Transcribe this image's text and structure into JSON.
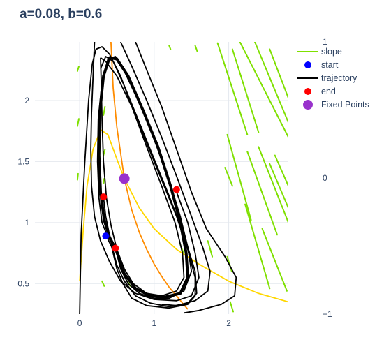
{
  "chart_data": {
    "type": "line",
    "title": "a=0.08, b=0.6",
    "xlim": [
      -0.6,
      2.8
    ],
    "ylim": [
      0.25,
      2.48
    ],
    "x_ticks": [
      0,
      1,
      2
    ],
    "y_ticks": [
      0.5,
      1,
      1.5,
      2
    ],
    "y2_ticks": [
      {
        "label": "1",
        "frac": 1.0
      },
      {
        "label": "0",
        "frac": 0.5
      },
      {
        "label": "−1",
        "frac": 0.0
      }
    ],
    "grid": true,
    "legend_position": "top-right",
    "legend": [
      {
        "name": "slope",
        "kind": "line",
        "color": "#7fe000"
      },
      {
        "name": "start",
        "kind": "marker",
        "color": "#0000ff"
      },
      {
        "name": "trajectory",
        "kind": "line",
        "color": "#000000"
      },
      {
        "name": "end",
        "kind": "marker",
        "color": "#ff0000"
      },
      {
        "name": "Fixed Points",
        "kind": "marker",
        "color": "#9932cc"
      }
    ],
    "colors": {
      "slope": "#7fe000",
      "trajectory": "#000000",
      "start": "#0000ff",
      "end": "#ff0000",
      "fixed": "#9932cc",
      "nullcline_x": "#ffd700",
      "nullcline_y": "#ff8c00"
    },
    "nullcline_x": [
      [
        0.0,
        0.52
      ],
      [
        0.05,
        0.95
      ],
      [
        0.1,
        1.3
      ],
      [
        0.18,
        1.6
      ],
      [
        0.28,
        1.76
      ],
      [
        0.38,
        1.72
      ],
      [
        0.5,
        1.52
      ],
      [
        0.6,
        1.36
      ],
      [
        0.8,
        1.12
      ],
      [
        1.0,
        0.95
      ],
      [
        1.3,
        0.78
      ],
      [
        1.6,
        0.66
      ],
      [
        2.0,
        0.52
      ],
      [
        2.4,
        0.42
      ],
      [
        2.8,
        0.35
      ]
    ],
    "nullcline_y": [
      [
        0.42,
        2.48
      ],
      [
        0.45,
        2.1
      ],
      [
        0.5,
        1.78
      ],
      [
        0.6,
        1.36
      ],
      [
        0.7,
        1.1
      ],
      [
        0.8,
        0.92
      ],
      [
        0.9,
        0.78
      ],
      [
        1.0,
        0.66
      ],
      [
        1.1,
        0.56
      ],
      [
        1.2,
        0.47
      ],
      [
        1.3,
        0.4
      ],
      [
        1.38,
        0.34
      ],
      [
        1.45,
        0.29
      ]
    ],
    "trajectories": [
      [
        [
          0.0,
          0.25
        ],
        [
          0.02,
          0.9
        ],
        [
          0.07,
          1.5
        ],
        [
          0.12,
          2.0
        ],
        [
          0.17,
          2.3
        ],
        [
          0.22,
          2.42
        ],
        [
          0.3,
          2.44
        ],
        [
          0.4,
          2.38
        ],
        [
          0.55,
          2.2
        ],
        [
          0.7,
          1.95
        ],
        [
          0.9,
          1.65
        ],
        [
          1.1,
          1.35
        ],
        [
          1.3,
          1.05
        ],
        [
          1.45,
          0.78
        ],
        [
          1.55,
          0.55
        ],
        [
          1.55,
          0.4
        ],
        [
          1.45,
          0.33
        ],
        [
          1.2,
          0.3
        ],
        [
          0.9,
          0.32
        ],
        [
          0.7,
          0.38
        ],
        [
          0.58,
          0.5
        ],
        [
          0.5,
          0.62
        ],
        [
          0.43,
          0.8
        ],
        [
          0.35,
          0.9
        ]
      ],
      [
        [
          0.28,
          2.26
        ],
        [
          0.35,
          2.36
        ],
        [
          0.45,
          2.32
        ],
        [
          0.6,
          2.12
        ],
        [
          0.8,
          1.82
        ],
        [
          1.0,
          1.52
        ],
        [
          1.2,
          1.22
        ],
        [
          1.4,
          0.9
        ],
        [
          1.55,
          0.6
        ],
        [
          1.57,
          0.42
        ],
        [
          1.45,
          0.34
        ],
        [
          1.2,
          0.31
        ],
        [
          0.95,
          0.34
        ],
        [
          0.75,
          0.4
        ],
        [
          0.6,
          0.52
        ],
        [
          0.5,
          0.65
        ],
        [
          0.42,
          0.84
        ],
        [
          0.35,
          1.05
        ],
        [
          0.32,
          1.21
        ]
      ],
      [
        [
          0.48,
          0.79
        ],
        [
          0.55,
          0.62
        ],
        [
          0.65,
          0.5
        ],
        [
          0.8,
          0.42
        ],
        [
          1.0,
          0.38
        ],
        [
          1.2,
          0.38
        ],
        [
          1.4,
          0.44
        ],
        [
          1.5,
          0.6
        ],
        [
          1.45,
          0.8
        ],
        [
          1.35,
          1.05
        ],
        [
          1.2,
          1.35
        ],
        [
          1.0,
          1.68
        ],
        [
          0.8,
          1.98
        ],
        [
          0.6,
          2.24
        ],
        [
          0.48,
          2.36
        ],
        [
          0.38,
          2.34
        ],
        [
          0.3,
          2.15
        ],
        [
          0.25,
          1.85
        ],
        [
          0.24,
          1.5
        ],
        [
          0.26,
          1.2
        ],
        [
          0.3,
          1.0
        ],
        [
          0.38,
          0.88
        ],
        [
          0.48,
          0.79
        ]
      ],
      [
        [
          0.28,
          2.35
        ],
        [
          0.35,
          2.32
        ],
        [
          0.5,
          2.2
        ],
        [
          0.7,
          1.95
        ],
        [
          0.9,
          1.62
        ],
        [
          1.1,
          1.3
        ],
        [
          1.28,
          1.0
        ],
        [
          1.38,
          0.75
        ],
        [
          1.4,
          0.55
        ],
        [
          1.3,
          0.44
        ],
        [
          1.1,
          0.4
        ],
        [
          0.9,
          0.42
        ],
        [
          0.72,
          0.5
        ],
        [
          0.6,
          0.62
        ],
        [
          0.5,
          0.78
        ],
        [
          0.42,
          0.98
        ],
        [
          0.36,
          1.2
        ],
        [
          0.32,
          1.5
        ],
        [
          0.3,
          1.85
        ],
        [
          0.29,
          2.15
        ],
        [
          0.28,
          2.35
        ]
      ],
      [
        [
          0.75,
          2.48
        ],
        [
          0.9,
          2.25
        ],
        [
          1.1,
          1.95
        ],
        [
          1.3,
          1.6
        ],
        [
          1.5,
          1.25
        ],
        [
          1.7,
          0.95
        ],
        [
          1.95,
          0.72
        ],
        [
          2.1,
          0.55
        ],
        [
          2.08,
          0.4
        ],
        [
          1.9,
          0.33
        ],
        [
          1.6,
          0.28
        ],
        [
          1.4,
          0.26
        ]
      ],
      [
        [
          0.55,
          2.48
        ],
        [
          0.7,
          2.28
        ],
        [
          0.9,
          2.0
        ],
        [
          1.1,
          1.7
        ],
        [
          1.3,
          1.38
        ],
        [
          1.5,
          1.05
        ],
        [
          1.65,
          0.8
        ],
        [
          1.75,
          0.6
        ],
        [
          1.72,
          0.44
        ],
        [
          1.55,
          0.36
        ],
        [
          1.3,
          0.32
        ],
        [
          1.1,
          0.33
        ]
      ],
      [
        [
          0.2,
          2.48
        ],
        [
          0.18,
          2.2
        ],
        [
          0.16,
          1.9
        ],
        [
          0.15,
          1.6
        ],
        [
          0.16,
          1.3
        ],
        [
          0.2,
          1.05
        ],
        [
          0.28,
          0.85
        ],
        [
          0.4,
          0.68
        ],
        [
          0.55,
          0.52
        ],
        [
          0.75,
          0.42
        ],
        [
          1.0,
          0.37
        ],
        [
          1.3,
          0.36
        ],
        [
          1.5,
          0.4
        ],
        [
          1.6,
          0.55
        ],
        [
          1.55,
          0.75
        ],
        [
          1.45,
          1.0
        ],
        [
          1.3,
          1.25
        ]
      ]
    ],
    "thick_trajectory": [
      [
        0.48,
        0.79
      ],
      [
        0.6,
        0.58
      ],
      [
        0.75,
        0.46
      ],
      [
        0.95,
        0.4
      ],
      [
        1.15,
        0.39
      ],
      [
        1.35,
        0.42
      ],
      [
        1.45,
        0.55
      ],
      [
        1.43,
        0.75
      ],
      [
        1.35,
        1.0
      ],
      [
        1.22,
        1.3
      ],
      [
        1.05,
        1.62
      ],
      [
        0.85,
        1.92
      ],
      [
        0.65,
        2.2
      ],
      [
        0.5,
        2.34
      ],
      [
        0.4,
        2.35
      ],
      [
        0.32,
        2.2
      ],
      [
        0.27,
        1.9
      ],
      [
        0.26,
        1.55
      ],
      [
        0.28,
        1.25
      ],
      [
        0.33,
        1.02
      ],
      [
        0.4,
        0.88
      ],
      [
        0.48,
        0.79
      ]
    ],
    "slope_segments": [
      [
        [
          -0.03,
          2.24
        ],
        [
          -0.01,
          2.28
        ]
      ],
      [
        [
          -0.03,
          1.79
        ],
        [
          -0.01,
          1.85
        ]
      ],
      [
        [
          -0.03,
          1.35
        ],
        [
          -0.02,
          1.4
        ]
      ],
      [
        [
          0.32,
          1.88
        ],
        [
          0.34,
          1.95
        ]
      ],
      [
        [
          0.32,
          1.55
        ],
        [
          0.34,
          1.6
        ]
      ],
      [
        [
          0.32,
          1.32
        ],
        [
          0.33,
          1.36
        ]
      ],
      [
        [
          0.3,
          0.52
        ],
        [
          0.33,
          0.48
        ]
      ],
      [
        [
          0.64,
          0.52
        ],
        [
          0.68,
          0.48
        ]
      ],
      [
        [
          1.38,
          0.92
        ],
        [
          1.42,
          0.84
        ]
      ],
      [
        [
          1.35,
          0.82
        ],
        [
          1.4,
          0.74
        ]
      ],
      [
        [
          1.72,
          0.85
        ],
        [
          1.78,
          0.72
        ]
      ],
      [
        [
          1.98,
          0.72
        ],
        [
          2.04,
          0.6
        ]
      ],
      [
        [
          2.02,
          0.35
        ],
        [
          2.06,
          0.27
        ]
      ],
      [
        [
          1.95,
          1.45
        ],
        [
          2.05,
          1.3
        ]
      ],
      [
        [
          1.2,
          2.45
        ],
        [
          1.22,
          2.42
        ]
      ],
      [
        [
          1.55,
          2.45
        ],
        [
          1.58,
          2.4
        ]
      ],
      [
        [
          1.85,
          2.47
        ],
        [
          2.25,
          1.72
        ]
      ],
      [
        [
          2.05,
          2.42
        ],
        [
          2.4,
          1.74
        ]
      ],
      [
        [
          2.15,
          2.48
        ],
        [
          2.8,
          1.7
        ]
      ],
      [
        [
          2.35,
          2.48
        ],
        [
          2.8,
          1.82
        ]
      ],
      [
        [
          2.55,
          2.42
        ],
        [
          2.8,
          2.02
        ]
      ],
      [
        [
          1.98,
          1.72
        ],
        [
          2.3,
          1.02
        ]
      ],
      [
        [
          2.25,
          1.58
        ],
        [
          2.65,
          0.9
        ]
      ],
      [
        [
          2.4,
          1.62
        ],
        [
          2.8,
          1.0
        ]
      ],
      [
        [
          2.55,
          1.48
        ],
        [
          2.8,
          1.12
        ]
      ],
      [
        [
          2.22,
          1.15
        ],
        [
          2.55,
          0.46
        ]
      ],
      [
        [
          2.45,
          0.95
        ],
        [
          2.78,
          0.44
        ]
      ],
      [
        [
          2.62,
          1.55
        ],
        [
          2.8,
          1.3
        ]
      ]
    ],
    "start_points": [
      [
        0.35,
        0.89
      ]
    ],
    "end_points": [
      [
        0.32,
        1.21
      ],
      [
        0.48,
        0.79
      ],
      [
        1.3,
        1.27
      ]
    ],
    "fixed_points": [
      [
        0.6,
        1.36
      ]
    ]
  }
}
